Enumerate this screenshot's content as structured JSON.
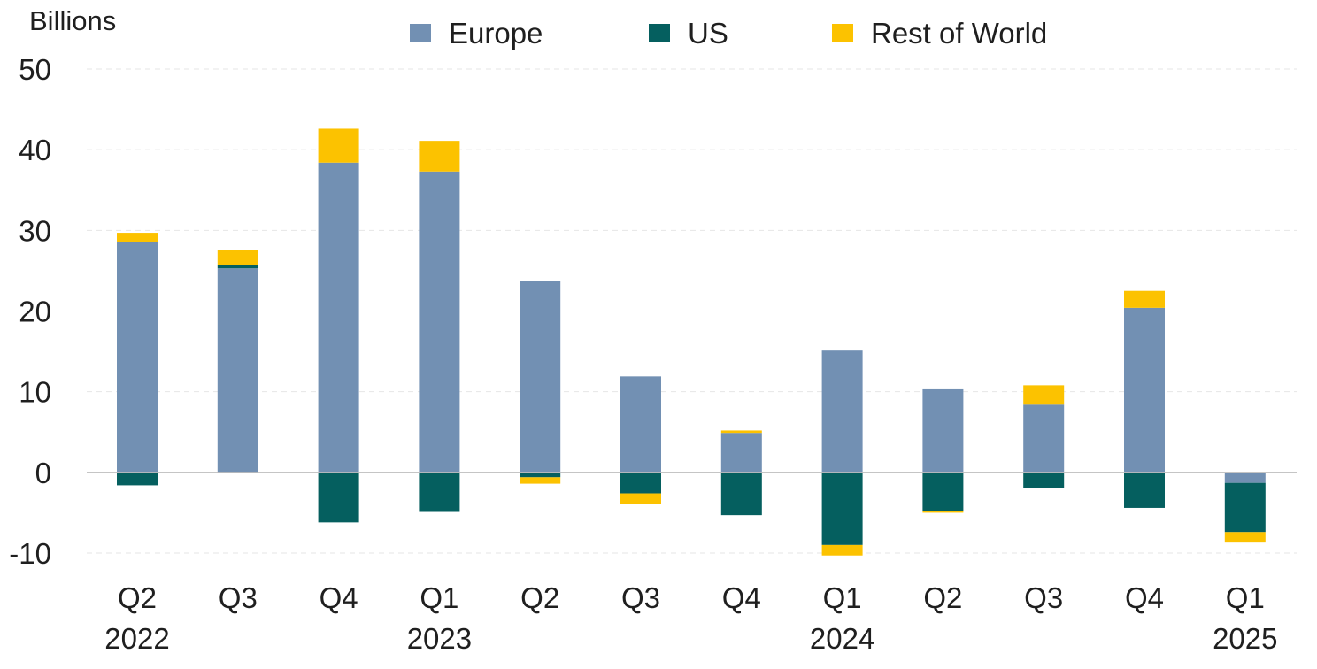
{
  "chart_data": {
    "type": "bar",
    "stacked": true,
    "unit_label": "Billions",
    "categories": [
      {
        "quarter": "Q2",
        "year": "2022"
      },
      {
        "quarter": "Q3",
        "year": ""
      },
      {
        "quarter": "Q4",
        "year": ""
      },
      {
        "quarter": "Q1",
        "year": "2023"
      },
      {
        "quarter": "Q2",
        "year": ""
      },
      {
        "quarter": "Q3",
        "year": ""
      },
      {
        "quarter": "Q4",
        "year": ""
      },
      {
        "quarter": "Q1",
        "year": "2024"
      },
      {
        "quarter": "Q2",
        "year": ""
      },
      {
        "quarter": "Q3",
        "year": ""
      },
      {
        "quarter": "Q4",
        "year": ""
      },
      {
        "quarter": "Q1",
        "year": "2025"
      }
    ],
    "series": [
      {
        "name": "Europe",
        "color": "#7290b3",
        "values": [
          28.6,
          25.3,
          38.4,
          37.3,
          23.7,
          11.9,
          4.9,
          15.1,
          10.3,
          8.4,
          20.4,
          -1.3
        ]
      },
      {
        "name": "US",
        "color": "#055f5f",
        "values": [
          -1.6,
          0.4,
          -6.2,
          -4.9,
          -0.6,
          -2.6,
          -5.3,
          -9.0,
          -4.8,
          -1.9,
          -4.4,
          -6.1
        ]
      },
      {
        "name": "Rest of World",
        "color": "#fcc200",
        "values": [
          1.1,
          1.9,
          4.2,
          3.8,
          -0.8,
          -1.3,
          0.3,
          -1.3,
          -0.2,
          2.4,
          2.1,
          -1.3
        ]
      }
    ],
    "y_ticks": [
      50,
      40,
      30,
      20,
      10,
      0,
      -10
    ],
    "ylim": [
      -10,
      50
    ],
    "legend_position": "top-center",
    "grid": true
  }
}
